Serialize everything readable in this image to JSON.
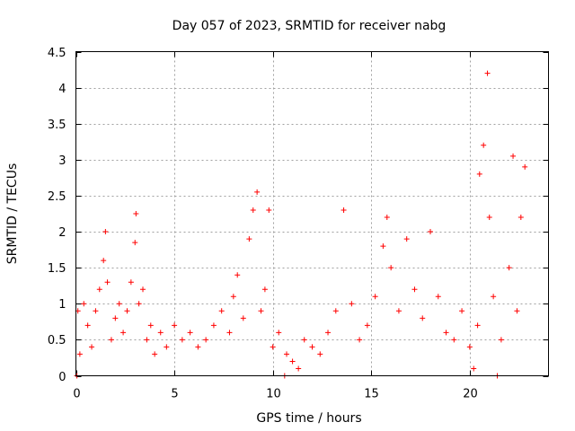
{
  "chart_data": {
    "type": "scatter",
    "title": "Day 057 of 2023, SRMTID for receiver nabg",
    "xlabel": "GPS time / hours",
    "ylabel": "SRMTID / TECUs",
    "xlim": [
      0,
      24
    ],
    "ylim": [
      0,
      4.5
    ],
    "xticks": [
      "0",
      "5",
      "10",
      "15",
      "20"
    ],
    "yticks": [
      "0",
      "0.5",
      "1",
      "1.5",
      "2",
      "2.5",
      "3",
      "3.5",
      "4",
      "4.5"
    ],
    "grid": true,
    "marker": "plus",
    "series": [
      {
        "name": "SRMTID",
        "color": "#ff0000",
        "x": [
          0.1,
          0.2,
          0.4,
          0.6,
          0.8,
          1.0,
          1.2,
          1.4,
          1.5,
          1.6,
          1.8,
          2.0,
          2.2,
          2.4,
          2.6,
          2.8,
          3.0,
          3.05,
          3.2,
          3.4,
          3.6,
          3.8,
          4.0,
          4.3,
          4.6,
          5.0,
          5.4,
          5.8,
          6.2,
          6.6,
          7.0,
          7.4,
          7.8,
          8.0,
          8.2,
          8.5,
          8.8,
          9.0,
          9.2,
          9.4,
          9.6,
          9.8,
          10.0,
          10.3,
          10.7,
          11.0,
          11.3,
          11.6,
          12.0,
          12.4,
          12.8,
          13.2,
          13.6,
          14.0,
          14.4,
          14.8,
          15.2,
          15.6,
          15.8,
          16.0,
          16.4,
          16.8,
          17.2,
          17.6,
          18.0,
          18.4,
          18.8,
          19.2,
          19.6,
          20.0,
          20.2,
          20.4,
          20.5,
          20.7,
          20.9,
          21.0,
          21.2,
          21.6,
          22.0,
          22.2,
          22.4,
          22.6,
          22.8,
          0.05,
          10.6,
          21.4
        ],
        "y": [
          0.9,
          0.3,
          1.0,
          0.7,
          0.4,
          0.9,
          1.2,
          1.6,
          2.0,
          1.3,
          0.5,
          0.8,
          1.0,
          0.6,
          0.9,
          1.3,
          1.85,
          2.25,
          1.0,
          1.2,
          0.5,
          0.7,
          0.3,
          0.6,
          0.4,
          0.7,
          0.5,
          0.6,
          0.4,
          0.5,
          0.7,
          0.9,
          0.6,
          1.1,
          1.4,
          0.8,
          1.9,
          2.3,
          2.55,
          0.9,
          1.2,
          2.3,
          0.4,
          0.6,
          0.3,
          0.2,
          0.1,
          0.5,
          0.4,
          0.3,
          0.6,
          0.9,
          2.3,
          1.0,
          0.5,
          0.7,
          1.1,
          1.8,
          2.2,
          1.5,
          0.9,
          1.9,
          1.2,
          0.8,
          2.0,
          1.1,
          0.6,
          0.5,
          0.9,
          0.4,
          0.1,
          0.7,
          2.8,
          3.2,
          4.2,
          2.2,
          1.1,
          0.5,
          1.5,
          3.05,
          0.9,
          2.2,
          2.9,
          0.0,
          0.0,
          0.0
        ]
      }
    ]
  }
}
